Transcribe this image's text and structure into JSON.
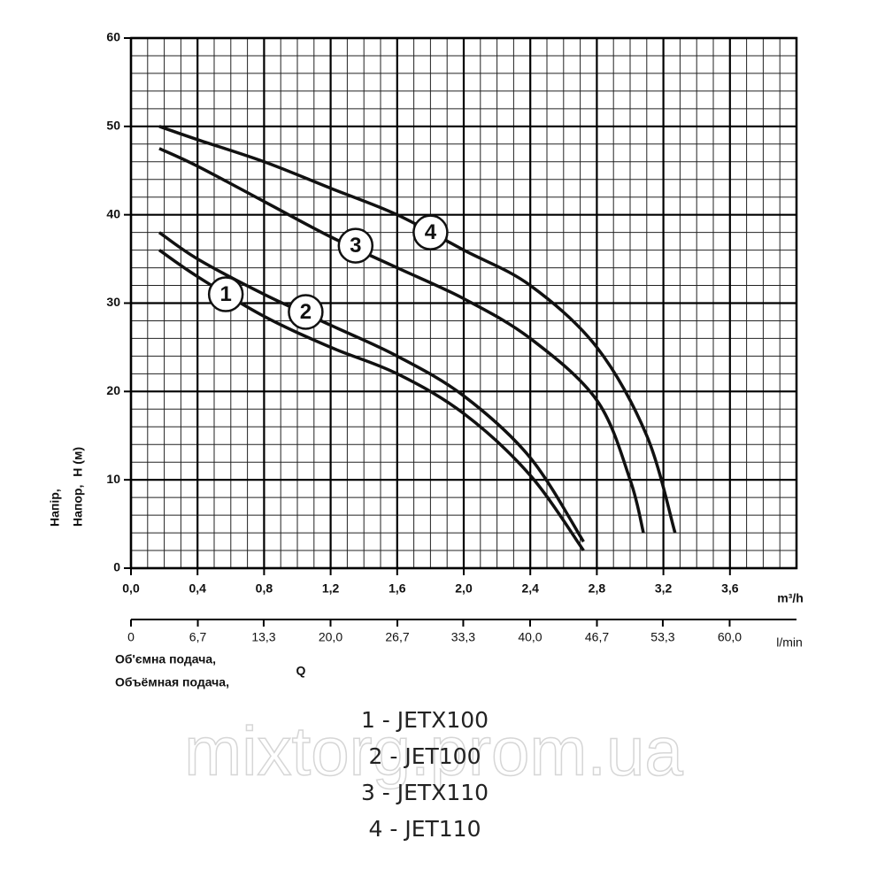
{
  "chart_data": {
    "type": "line",
    "x_label": "m³/h",
    "x2_label": "l/min",
    "y_label_lines": [
      "Напір,",
      "Напор,"
    ],
    "y_label_unit": "H (м)",
    "x_title_lines": [
      "Об'ємна подача,",
      "Объёмная подача,"
    ],
    "x_title_symbol": "Q",
    "watermark": "mixtorg.prom.ua",
    "xlim": [
      0,
      4.0
    ],
    "ylim": [
      0,
      60
    ],
    "x2lim": [
      0,
      66.7
    ],
    "xticks": [
      {
        "value": 0,
        "label": "0,0"
      },
      {
        "value": 0.4,
        "label": "0,4"
      },
      {
        "value": 0.8,
        "label": "0,8"
      },
      {
        "value": 1.2,
        "label": "1,2"
      },
      {
        "value": 1.6,
        "label": "1,6"
      },
      {
        "value": 2.0,
        "label": "2,0"
      },
      {
        "value": 2.4,
        "label": "2,4"
      },
      {
        "value": 2.8,
        "label": "2,8"
      },
      {
        "value": 3.2,
        "label": "3,2"
      },
      {
        "value": 3.6,
        "label": "3,6"
      }
    ],
    "x2ticks": [
      0,
      {
        "value": 6.7,
        "label": "6,7"
      },
      {
        "value": 13.3,
        "label": "13,3"
      },
      {
        "value": 20.0,
        "label": "20,0"
      },
      {
        "value": 26.7,
        "label": "26,7"
      },
      {
        "value": 33.3,
        "label": "33,3"
      },
      {
        "value": 40.0,
        "label": "40,0"
      },
      {
        "value": 46.7,
        "label": "46,7"
      },
      {
        "value": 53.3,
        "label": "53,3"
      },
      {
        "value": 60.0,
        "label": "60,0"
      }
    ],
    "yticks": [
      0,
      10,
      20,
      30,
      40,
      50,
      60
    ],
    "grid": true,
    "color": "#111111",
    "series": [
      {
        "name": "1 - JETX100",
        "label": "1",
        "x": [
          0.17,
          0.4,
          0.8,
          1.2,
          1.6,
          2.0,
          2.4,
          2.72
        ],
        "values": [
          36,
          33,
          28.5,
          25,
          22,
          17.5,
          10.5,
          2
        ]
      },
      {
        "name": "2 - JET100",
        "label": "2",
        "x": [
          0.17,
          0.4,
          0.8,
          1.2,
          1.6,
          2.0,
          2.4,
          2.72
        ],
        "values": [
          38,
          35,
          31,
          27.5,
          24,
          19.5,
          12.5,
          3
        ]
      },
      {
        "name": "3 - JETX110",
        "label": "3",
        "x": [
          0.17,
          0.4,
          0.8,
          1.2,
          1.6,
          2.0,
          2.4,
          2.8,
          3.0,
          3.08
        ],
        "values": [
          47.5,
          45.5,
          41.5,
          37.5,
          34,
          30.5,
          26,
          19,
          10,
          4
        ]
      },
      {
        "name": "4 - JET110",
        "label": "4",
        "x": [
          0.17,
          0.4,
          0.8,
          1.2,
          1.6,
          2.0,
          2.4,
          2.8,
          3.1,
          3.27
        ],
        "values": [
          50,
          48.5,
          46,
          43,
          40,
          36,
          32,
          25,
          15,
          4
        ]
      }
    ]
  }
}
